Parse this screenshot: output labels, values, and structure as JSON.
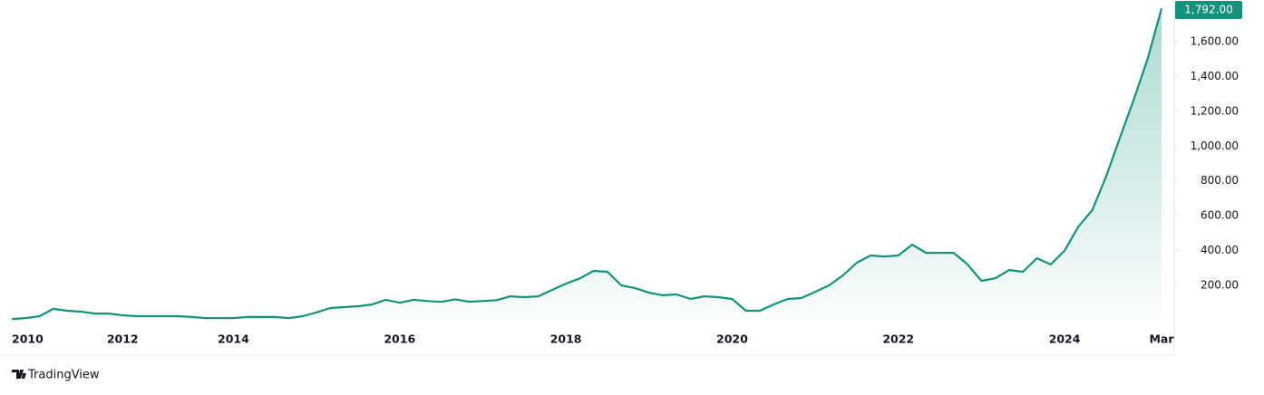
{
  "chart_data": {
    "type": "line",
    "categories": [
      "2010",
      null,
      null,
      null,
      null,
      null,
      null,
      null,
      "2012",
      null,
      null,
      null,
      null,
      null,
      null,
      null,
      "2014",
      null,
      null,
      null,
      null,
      null,
      null,
      null,
      null,
      null,
      null,
      null,
      "2016",
      null,
      null,
      null,
      null,
      null,
      null,
      null,
      null,
      null,
      null,
      null,
      "2018",
      null,
      null,
      null,
      null,
      null,
      null,
      null,
      null,
      null,
      null,
      null,
      "2020",
      null,
      null,
      null,
      null,
      null,
      null,
      null,
      null,
      null,
      null,
      null,
      "2022",
      null,
      null,
      null,
      null,
      null,
      null,
      null,
      null,
      null,
      null,
      null,
      "2024",
      null,
      null,
      null,
      null,
      null,
      null,
      "Mar"
    ],
    "series": [
      {
        "color": "#14937c",
        "values": [
          7,
          12,
          23,
          65,
          54,
          49,
          38,
          38,
          28,
          23,
          23,
          23,
          23,
          18,
          12,
          12,
          12,
          18,
          18,
          18,
          12,
          23,
          45,
          70,
          75,
          80,
          90,
          117,
          100,
          117,
          110,
          105,
          120,
          106,
          110,
          115,
          137,
          132,
          137,
          174,
          210,
          240,
          283,
          278,
          200,
          184,
          158,
          143,
          148,
          122,
          137,
          132,
          122,
          54,
          54,
          90,
          122,
          127,
          163,
          200,
          257,
          330,
          372,
          366,
          372,
          434,
          387,
          387,
          387,
          320,
          226,
          241,
          288,
          278,
          356,
          320,
          400,
          538,
          632,
          826,
          1050,
          1268,
          1502,
          1792
        ]
      }
    ],
    "last_label": {
      "value": 1792,
      "label": "1,792.00"
    },
    "ylim": [
      0,
      1840
    ],
    "yticks": [
      {
        "value": 200,
        "label": "200.00"
      },
      {
        "value": 400,
        "label": "400.00"
      },
      {
        "value": 600,
        "label": "600.00"
      },
      {
        "value": 800,
        "label": "800.00"
      },
      {
        "value": 1000,
        "label": "1,000.00"
      },
      {
        "value": 1200,
        "label": "1,200.00"
      },
      {
        "value": 1400,
        "label": "1,400.00"
      },
      {
        "value": 1600,
        "label": "1,600.00"
      }
    ],
    "grid": false
  },
  "logo_text": "TradingView"
}
